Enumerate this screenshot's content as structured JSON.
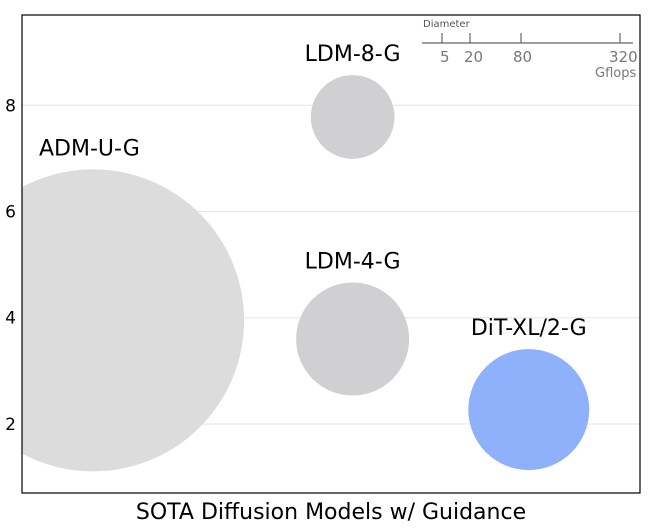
{
  "chart_data": {
    "type": "scatter",
    "title": "",
    "xlabel": "SOTA Diffusion Models w/ Guidance",
    "ylabel": "",
    "ylim": [
      0.7,
      9.7
    ],
    "xlim": [
      0,
      10
    ],
    "yticks": [
      "2",
      "4",
      "6",
      "8"
    ],
    "grid": true,
    "points": [
      {
        "label": "ADM-U-G",
        "x": 1.15,
        "y": 3.95,
        "gflops": 742,
        "color": "#dcdcdc"
      },
      {
        "label": "LDM-8-G",
        "x": 5.35,
        "y": 7.78,
        "gflops": 57,
        "color": "#d0d0d3"
      },
      {
        "label": "LDM-4-G",
        "x": 5.35,
        "y": 3.6,
        "gflops": 104,
        "color": "#d0d0d3"
      },
      {
        "label": "DiT-XL/2-G",
        "x": 8.2,
        "y": 2.27,
        "gflops": 119,
        "color": "#8fb0fb"
      }
    ],
    "size_legend": {
      "title": "Diameter",
      "values": [
        "5",
        "20",
        "80",
        "320"
      ],
      "unit": "Gflops"
    }
  }
}
